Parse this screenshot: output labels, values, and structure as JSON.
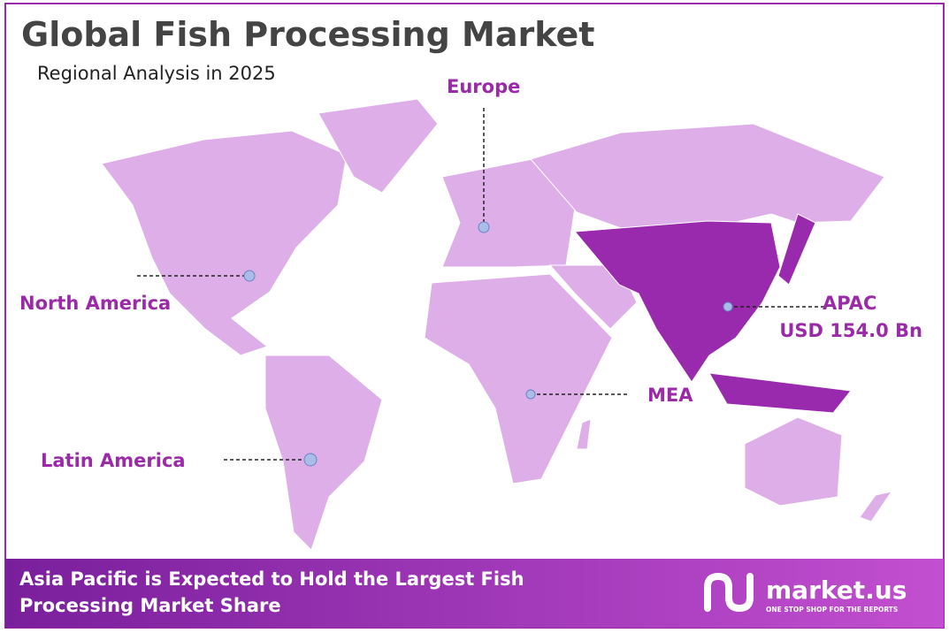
{
  "header": {
    "title": "Global Fish Processing Market",
    "subtitle": "Regional Analysis in 2025"
  },
  "regions": [
    {
      "label": "North America"
    },
    {
      "label": "Europe"
    },
    {
      "label": "APAC",
      "value": "USD 154.0 Bn"
    },
    {
      "label": "MEA"
    },
    {
      "label": "Latin America"
    }
  ],
  "footer": {
    "text": "Asia Pacific is Expected to Hold the Largest Fish Processing Market Share",
    "brand": "market.us",
    "tagline": "ONE STOP SHOP FOR THE REPORTS"
  }
}
